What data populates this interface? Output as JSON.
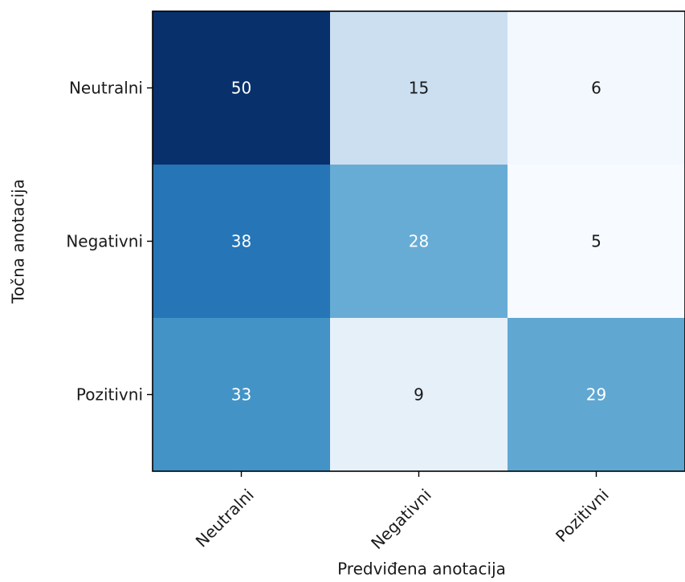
{
  "chart_data": {
    "type": "heatmap",
    "title": "",
    "xlabel": "Predviđena anotacija",
    "ylabel": "Točna anotacija",
    "x_categories": [
      "Neutralni",
      "Negativni",
      "Pozitivni"
    ],
    "y_categories": [
      "Neutralni",
      "Negativni",
      "Pozitivni"
    ],
    "values": [
      [
        50,
        15,
        6
      ],
      [
        38,
        28,
        5
      ],
      [
        33,
        9,
        29
      ]
    ],
    "colormap": "Blues",
    "value_range": [
      5,
      50
    ],
    "colorbar": false,
    "grid": false
  }
}
